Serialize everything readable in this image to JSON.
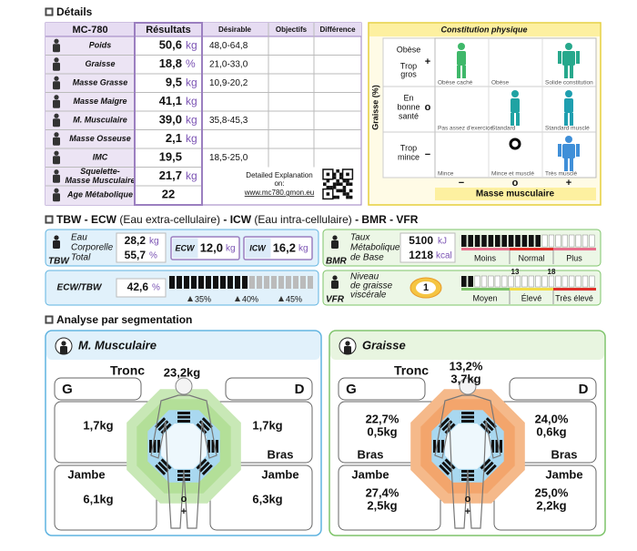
{
  "details": {
    "title": "Détails",
    "headers": [
      "MC-780",
      "Résultats",
      "Désirable",
      "Objectifs",
      "Différence"
    ],
    "rows": [
      {
        "label": [
          "Poids"
        ],
        "value": "50,6",
        "unit": "kg",
        "desirable": "48,0-64,8"
      },
      {
        "label": [
          "Graisse"
        ],
        "value": "18,8",
        "unit": "%",
        "desirable": "21,0-33,0"
      },
      {
        "label": [
          "Masse Grasse"
        ],
        "value": "9,5",
        "unit": "kg",
        "desirable": "10,9-20,2"
      },
      {
        "label": [
          "Masse Maigre"
        ],
        "value": "41,1",
        "unit": "kg"
      },
      {
        "label": [
          "M. Musculaire"
        ],
        "value": "39,0",
        "unit": "kg",
        "desirable": "35,8-45,3"
      },
      {
        "label": [
          "Masse Osseuse"
        ],
        "value": "2,1",
        "unit": "kg"
      },
      {
        "label": [
          "IMC"
        ],
        "value": "19,5",
        "desirable": "18,5-25,0"
      },
      {
        "label": [
          "Squelette-",
          "Masse Musculaire"
        ],
        "value": "21,7",
        "unit": "kg"
      },
      {
        "label": [
          "Age Métabolique"
        ],
        "value": "22"
      }
    ],
    "explanation": [
      "Detailed Explanation",
      "on:"
    ],
    "link": "www.mc780.gmon.eu"
  },
  "constitution": {
    "title": "Constitution physique",
    "y_label": "Graisse (%)",
    "row_labels": [
      [
        "Obèse",
        "Trop",
        "gros"
      ],
      [
        "En",
        "bonne",
        "santé"
      ],
      [
        "Trop",
        "mince"
      ]
    ],
    "row_symbols": [
      "+",
      "o",
      "−"
    ],
    "cells": [
      "Obèse caché",
      "Obèse",
      "Solide constitution",
      "Pas assez d'exercice",
      "Standard",
      "Standard musclé",
      "Mince",
      "Mince et musclé",
      "Très musclé"
    ],
    "x_symbols": [
      "−",
      "o",
      "+"
    ],
    "x_label": "Masse musculaire"
  },
  "water": {
    "title_parts": [
      "TBW - ECW",
      " (Eau extra-cellulaire)",
      " - ICW",
      " (Eau intra-cellulaire)",
      " - BMR - VFR"
    ],
    "tbw": {
      "label": [
        "Eau",
        "Corporelle",
        "Total"
      ],
      "abbr": "TBW",
      "kg": "28,2",
      "kg_unit": "kg",
      "pct": "55,7",
      "pct_unit": "%"
    },
    "ecw": {
      "abbr": "ECW",
      "value": "12,0",
      "unit": "kg"
    },
    "icw": {
      "abbr": "ICW",
      "value": "16,2",
      "unit": "kg"
    },
    "ratio": {
      "abbr": "ECW/TBW",
      "value": "42,6",
      "unit": "%",
      "scale": [
        "35%",
        "40%",
        "45%"
      ]
    },
    "bmr": {
      "label": [
        "Taux",
        "Métabolique",
        "de Base"
      ],
      "abbr": "BMR",
      "kj": "5100",
      "kj_unit": "kJ",
      "kcal": "1218",
      "kcal_unit": "kcal",
      "scale": [
        "Moins",
        "Normal",
        "Plus"
      ]
    },
    "vfr": {
      "label": [
        "Niveau",
        "de graisse",
        "viscérale"
      ],
      "abbr": "VFR",
      "value": "1",
      "marks": [
        "13",
        "18"
      ],
      "scale": [
        "Moyen",
        "Élevé",
        "Très élevé"
      ]
    }
  },
  "segmentation": {
    "title": "Analyse par segmentation",
    "panels": [
      {
        "title": "M. Musculaire",
        "trunk_label": "Tronc",
        "trunk": [
          "23,2kg"
        ],
        "left": "G",
        "right": "D",
        "arm_labels": [
          "Bras"
        ],
        "leg_labels": [
          "Jambe",
          "Jambe"
        ],
        "left_arm": [
          "1,7kg"
        ],
        "right_arm": [
          "1,7kg"
        ],
        "left_leg": [
          "6,1kg"
        ],
        "right_leg": [
          "6,3kg"
        ],
        "scale": [
          "o",
          "+"
        ]
      },
      {
        "title": "Graisse",
        "trunk_label": "Tronc",
        "trunk": [
          "13,2%",
          "3,7kg"
        ],
        "left": "G",
        "right": "D",
        "arm_labels": [
          "Bras",
          "Bras"
        ],
        "leg_labels": [
          "Jambe",
          "Jambe"
        ],
        "left_arm": [
          "22,7%",
          "0,5kg"
        ],
        "right_arm": [
          "24,0%",
          "0,6kg"
        ],
        "left_leg": [
          "27,4%",
          "2,5kg"
        ],
        "right_leg": [
          "25,0%",
          "2,2kg"
        ],
        "scale": [
          "o",
          "+"
        ]
      }
    ]
  }
}
